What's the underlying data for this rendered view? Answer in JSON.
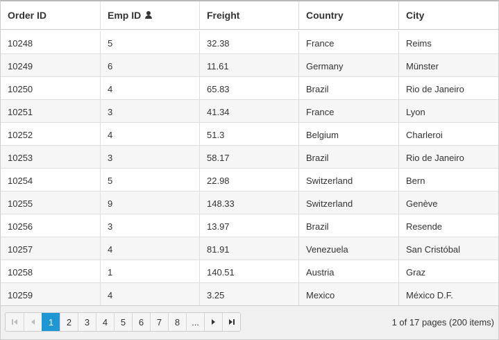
{
  "columns": [
    {
      "label": "Order ID"
    },
    {
      "label": "Emp ID",
      "icon": "person-icon"
    },
    {
      "label": "Freight"
    },
    {
      "label": "Country"
    },
    {
      "label": "City"
    }
  ],
  "rows": [
    [
      "10248",
      "5",
      "32.38",
      "France",
      "Reims"
    ],
    [
      "10249",
      "6",
      "11.61",
      "Germany",
      "Münster"
    ],
    [
      "10250",
      "4",
      "65.83",
      "Brazil",
      "Rio de Janeiro"
    ],
    [
      "10251",
      "3",
      "41.34",
      "France",
      "Lyon"
    ],
    [
      "10252",
      "4",
      "51.3",
      "Belgium",
      "Charleroi"
    ],
    [
      "10253",
      "3",
      "58.17",
      "Brazil",
      "Rio de Janeiro"
    ],
    [
      "10254",
      "5",
      "22.98",
      "Switzerland",
      "Bern"
    ],
    [
      "10255",
      "9",
      "148.33",
      "Switzerland",
      "Genève"
    ],
    [
      "10256",
      "3",
      "13.97",
      "Brazil",
      "Resende"
    ],
    [
      "10257",
      "4",
      "81.91",
      "Venezuela",
      "San Cristóbal"
    ],
    [
      "10258",
      "1",
      "140.51",
      "Austria",
      "Graz"
    ],
    [
      "10259",
      "4",
      "3.25",
      "Mexico",
      "México D.F."
    ]
  ],
  "pager": {
    "first_icon": "first-page-icon",
    "prev_icon": "prev-page-icon",
    "pages": [
      "1",
      "2",
      "3",
      "4",
      "5",
      "6",
      "7",
      "8",
      "..."
    ],
    "current_page": "1",
    "next_icon": "next-page-icon",
    "last_icon": "last-page-icon",
    "info": "1 of 17 pages (200 items)"
  },
  "colors": {
    "active_page": "#1f97d5",
    "alt_row": "#f6f6f6",
    "pager_bg": "#f0f0f0"
  }
}
